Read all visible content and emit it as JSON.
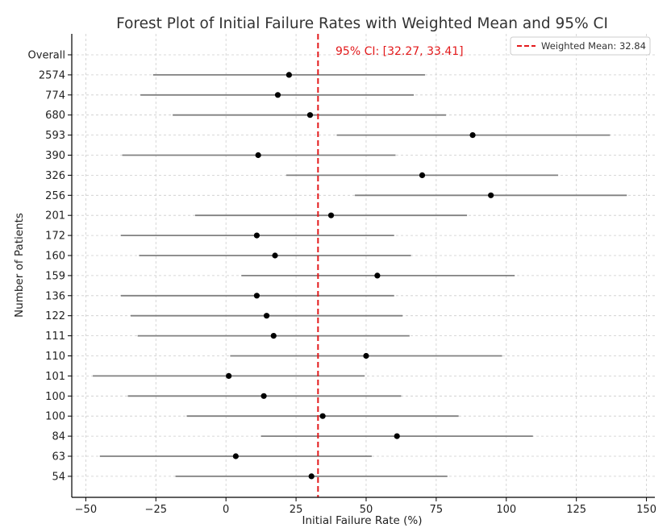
{
  "chart_data": {
    "type": "forest",
    "title": "Forest Plot of Initial Failure Rates with Weighted Mean and 95% CI",
    "xlabel": "Initial Failure Rate (%)",
    "ylabel": "Number of Patients",
    "xlim": [
      -55,
      153
    ],
    "x_ticks": [
      -50,
      -25,
      0,
      25,
      50,
      75,
      100,
      125,
      150
    ],
    "grid": true,
    "legend_position": "top-right",
    "weighted_mean": 32.84,
    "weighted_mean_label": "Weighted Mean: 32.84",
    "ci_annotation": "95% CI: [32.27, 33.41]",
    "colors": {
      "mean_line": "#e31a1c",
      "ci_text": "#e31a1c",
      "interval": "#808080",
      "point": "#000000",
      "grid": "#cccccc"
    },
    "categories": [
      "Overall",
      "2574",
      "774",
      "680",
      "593",
      "390",
      "326",
      "256",
      "201",
      "172",
      "160",
      "159",
      "136",
      "122",
      "111",
      "110",
      "101",
      "100",
      "100",
      "84",
      "63",
      "54"
    ],
    "studies": [
      {
        "label": "2574",
        "estimate": 22.5,
        "lower": -26,
        "upper": 71
      },
      {
        "label": "774",
        "estimate": 18.5,
        "lower": -30.5,
        "upper": 67
      },
      {
        "label": "680",
        "estimate": 30,
        "lower": -19,
        "upper": 78.5
      },
      {
        "label": "593",
        "estimate": 88,
        "lower": 39.5,
        "upper": 137
      },
      {
        "label": "390",
        "estimate": 11.5,
        "lower": -37,
        "upper": 60.5
      },
      {
        "label": "326",
        "estimate": 70,
        "lower": 21.5,
        "upper": 118.5
      },
      {
        "label": "256",
        "estimate": 94.5,
        "lower": 46,
        "upper": 143
      },
      {
        "label": "201",
        "estimate": 37.5,
        "lower": -11,
        "upper": 86
      },
      {
        "label": "172",
        "estimate": 11,
        "lower": -37.5,
        "upper": 60
      },
      {
        "label": "160",
        "estimate": 17.5,
        "lower": -31,
        "upper": 66
      },
      {
        "label": "159",
        "estimate": 54,
        "lower": 5.5,
        "upper": 103
      },
      {
        "label": "136",
        "estimate": 11,
        "lower": -37.5,
        "upper": 60
      },
      {
        "label": "122",
        "estimate": 14.5,
        "lower": -34,
        "upper": 63
      },
      {
        "label": "111",
        "estimate": 17,
        "lower": -31.5,
        "upper": 65.5
      },
      {
        "label": "110",
        "estimate": 50,
        "lower": 1.5,
        "upper": 98.5
      },
      {
        "label": "101",
        "estimate": 1,
        "lower": -47.5,
        "upper": 49.5
      },
      {
        "label": "100",
        "estimate": 13.5,
        "lower": -35,
        "upper": 62.5
      },
      {
        "label": "100",
        "estimate": 34.5,
        "lower": -14,
        "upper": 83
      },
      {
        "label": "84",
        "estimate": 61,
        "lower": 12.5,
        "upper": 109.5
      },
      {
        "label": "63",
        "estimate": 3.5,
        "lower": -45,
        "upper": 52
      },
      {
        "label": "54",
        "estimate": 30.5,
        "lower": -18,
        "upper": 79
      }
    ]
  }
}
